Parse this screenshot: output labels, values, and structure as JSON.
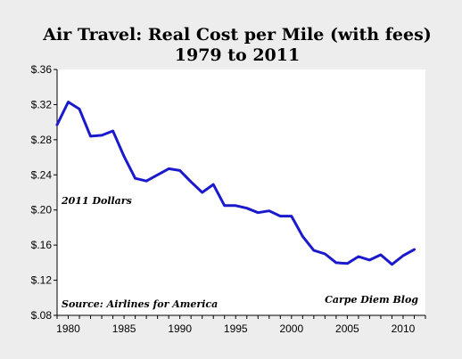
{
  "chart_data": {
    "type": "line",
    "title": "Air Travel: Real Cost per Mile (with fees)",
    "subtitle": "1979 to 2011",
    "xlabel": "",
    "ylabel": "",
    "xlim": [
      1979,
      2012
    ],
    "ylim": [
      0.08,
      0.36
    ],
    "x_ticks": [
      1980,
      1985,
      1990,
      1995,
      2000,
      2005,
      2010
    ],
    "x_tick_labels": [
      "1980",
      "1985",
      "1990",
      "1995",
      "2000",
      "2005",
      "2010"
    ],
    "y_ticks": [
      0.08,
      0.12,
      0.16,
      0.2,
      0.24,
      0.28,
      0.32,
      0.36
    ],
    "y_tick_labels": [
      "$.08",
      "$.12",
      "$.16",
      "$.20",
      "$.24",
      "$.28",
      "$.32",
      "$.36"
    ],
    "grid": false,
    "series": [
      {
        "color": "#1a1acc",
        "x": [
          1979,
          1980,
          1981,
          1982,
          1983,
          1984,
          1985,
          1986,
          1987,
          1988,
          1989,
          1990,
          1991,
          1992,
          1993,
          1994,
          1995,
          1996,
          1997,
          1998,
          1999,
          2000,
          2001,
          2002,
          2003,
          2004,
          2005,
          2006,
          2007,
          2008,
          2009,
          2010,
          2011
        ],
        "y": [
          0.297,
          0.323,
          0.315,
          0.284,
          0.285,
          0.29,
          0.261,
          0.236,
          0.233,
          0.24,
          0.247,
          0.245,
          0.232,
          0.22,
          0.229,
          0.205,
          0.205,
          0.202,
          0.197,
          0.199,
          0.193,
          0.193,
          0.17,
          0.154,
          0.15,
          0.14,
          0.139,
          0.147,
          0.143,
          0.149,
          0.138,
          0.148,
          0.155
        ]
      }
    ],
    "annotations": [
      {
        "id": "units",
        "text": "2011 Dollars"
      },
      {
        "id": "source",
        "text": "Source: Airlines for America"
      },
      {
        "id": "credit",
        "text": "Carpe Diem Blog"
      }
    ]
  }
}
